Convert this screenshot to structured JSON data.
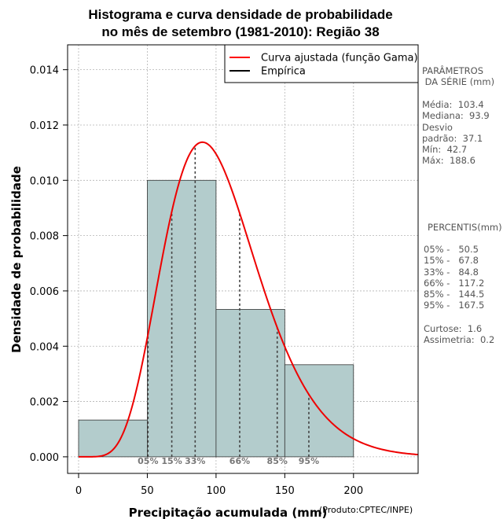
{
  "chart_data": {
    "type": "histogram",
    "title_line1": "Histograma e curva densidade de probabilidade",
    "title_line2": "no mês de setembro (1981-2010): Região 38",
    "xlabel": "Precipitação acumulada (mm)",
    "ylabel": "Densidade de probabilidade",
    "source": "(Produto:CPTEC/INPE)",
    "xlim": [
      -8,
      247
    ],
    "ylim": [
      -0.0006,
      0.0149
    ],
    "x_ticks": [
      0,
      50,
      100,
      150,
      200
    ],
    "y_ticks": [
      0.0,
      0.002,
      0.004,
      0.006,
      0.008,
      0.01,
      0.012,
      0.014
    ],
    "y_tick_labels": [
      "0.000",
      "0.002",
      "0.004",
      "0.006",
      "0.008",
      "0.010",
      "0.012",
      "0.014"
    ],
    "grid": true,
    "bins": [
      {
        "start": 0,
        "end": 50,
        "density": 0.00133
      },
      {
        "start": 50,
        "end": 100,
        "density": 0.01
      },
      {
        "start": 100,
        "end": 150,
        "density": 0.00533
      },
      {
        "start": 150,
        "end": 200,
        "density": 0.00333
      }
    ],
    "bar_color": "#b3cccc",
    "curve_color": "#ee0000",
    "gamma_fit": {
      "mean": 103.4,
      "sd": 37.1
    },
    "legend": {
      "position": "top-right",
      "entries": [
        {
          "label": "Curva ajustada (função Gama)",
          "color": "#ff0000"
        },
        {
          "label": "Empírica",
          "color": "#000000"
        }
      ]
    },
    "percentile_markers": [
      {
        "label": "05%",
        "value": 50.5
      },
      {
        "label": "15%",
        "value": 67.8
      },
      {
        "label": "33%",
        "value": 84.8
      },
      {
        "label": "66%",
        "value": 117.2
      },
      {
        "label": "85%",
        "value": 144.5
      },
      {
        "label": "95%",
        "value": 167.5
      }
    ]
  },
  "side_panel": {
    "params_title_1": "PARÂMETROS",
    "params_title_2": " DA SÉRIE (mm)",
    "params": [
      "Média:  103.4",
      "Mediana:  93.9",
      "Desvio",
      "padrão:  37.1",
      "Mín:  42.7",
      "Máx:  188.6"
    ],
    "percentis_title": "PERCENTIS(mm)",
    "percentis": [
      "05% -   50.5",
      "15% -   67.8",
      "33% -   84.8",
      "66% -   117.2",
      "85% -   144.5",
      "95% -   167.5"
    ],
    "curtose": "Curtose:  1.6",
    "assimetria": "Assimetria:  0.2"
  }
}
